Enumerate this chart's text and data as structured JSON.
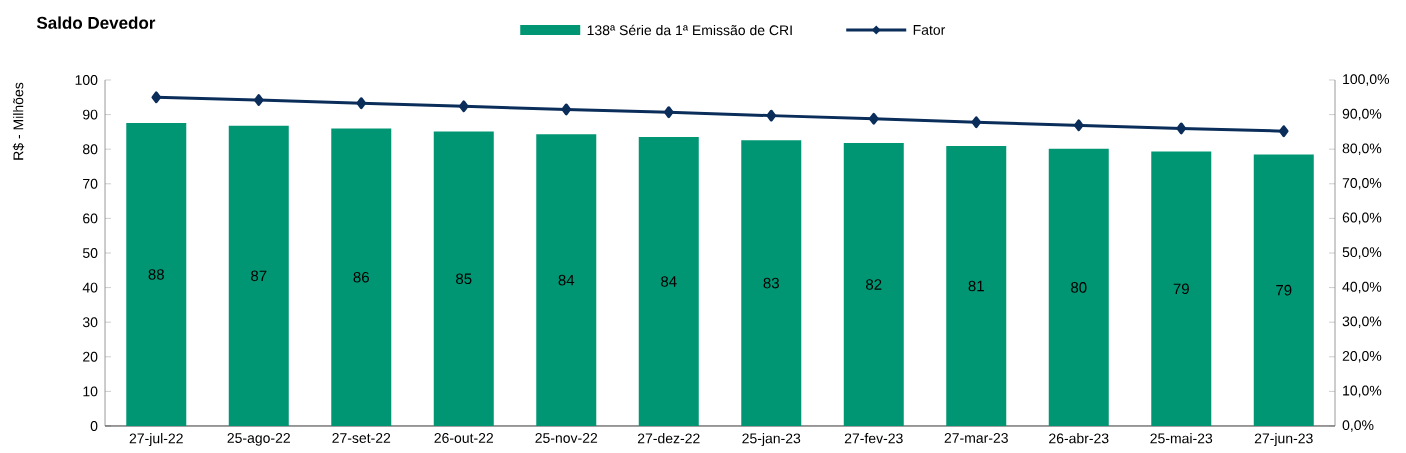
{
  "chart_data": {
    "type": "bar",
    "title": "Saldo Devedor",
    "ylabel": "R$ - Milhões",
    "categories": [
      "27-jul-22",
      "25-ago-22",
      "27-set-22",
      "26-out-22",
      "25-nov-22",
      "27-dez-22",
      "25-jan-23",
      "27-fev-23",
      "27-mar-23",
      "26-abr-23",
      "25-mai-23",
      "27-jun-23"
    ],
    "series": [
      {
        "name": "138ª Série da 1ª Emissão de CRI",
        "color": "#009673",
        "values": [
          87.6,
          86.8,
          86.0,
          85.1,
          84.3,
          83.5,
          82.6,
          81.8,
          80.9,
          80.1,
          79.3,
          78.5
        ],
        "value_labels": [
          "88",
          "87",
          "86",
          "85",
          "84",
          "84",
          "83",
          "82",
          "81",
          "80",
          "79",
          "79"
        ]
      },
      {
        "name": "Fator",
        "type": "line",
        "axis": "y2",
        "color": "#0a2d5a",
        "marker": "diamond",
        "values": [
          95.0,
          94.2,
          93.3,
          92.4,
          91.5,
          90.7,
          89.7,
          88.8,
          87.8,
          86.9,
          86.0,
          85.2
        ]
      }
    ],
    "ylim": [
      0,
      100
    ],
    "yticks": [
      0,
      10,
      20,
      30,
      40,
      50,
      60,
      70,
      80,
      90,
      100
    ],
    "y2lim": [
      0,
      100
    ],
    "y2ticks": [
      {
        "value": 0,
        "label": "0,0%"
      },
      {
        "value": 10,
        "label": "10,0%"
      },
      {
        "value": 20,
        "label": "20,0%"
      },
      {
        "value": 30,
        "label": "30,0%"
      },
      {
        "value": 40,
        "label": "40,0%"
      },
      {
        "value": 50,
        "label": "50,0%"
      },
      {
        "value": 60,
        "label": "60,0%"
      },
      {
        "value": 70,
        "label": "70,0%"
      },
      {
        "value": 80,
        "label": "80,0%"
      },
      {
        "value": 90,
        "label": "90,0%"
      },
      {
        "value": 100,
        "label": "100,0%"
      }
    ],
    "legend": "top",
    "grid": false
  }
}
